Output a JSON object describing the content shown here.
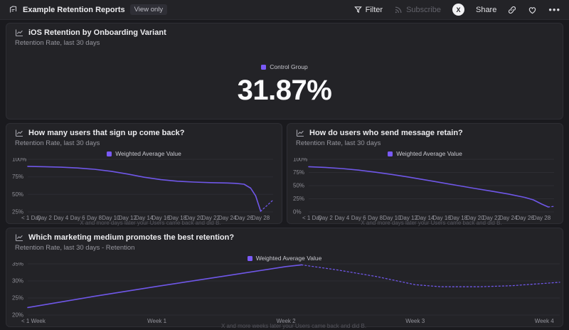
{
  "topbar": {
    "title": "Example Retention Reports",
    "badge": "View only",
    "filter_label": "Filter",
    "subscribe_label": "Subscribe",
    "share_label": "Share",
    "avatar_letter": "X"
  },
  "colors": {
    "accent": "#7a5af8",
    "line": "#6f57e8"
  },
  "cards": [
    {
      "title": "iOS Retention by Onboarding Variant",
      "subtitle": "Retention Rate, last 30 days"
    },
    {
      "title": "How many users that sign up come back?",
      "subtitle": "Retention Rate, last 30 days"
    },
    {
      "title": "How do users who send message retain?",
      "subtitle": "Retention Rate, last 30 days"
    },
    {
      "title": "Which marketing medium promotes the best retention?",
      "subtitle": "Retention Rate, last 30 days - Retention"
    }
  ],
  "chart_data": [
    {
      "type": "number",
      "title": "iOS Retention by Onboarding Variant",
      "legend": "Control Group",
      "value": "31.87%"
    },
    {
      "type": "line",
      "title": "How many users that sign up come back?",
      "legend": "Weighted Average Value",
      "xlabel": "X and more days later your Users came back and did B.",
      "ylabel": "Retention Rate",
      "ylim": [
        25,
        100
      ],
      "yticks": [
        25,
        50,
        75,
        100
      ],
      "xmax": 29.5,
      "xticks": [
        {
          "pos": 0,
          "label": "< 1 Day"
        },
        {
          "pos": 2,
          "label": "Day 2"
        },
        {
          "pos": 4,
          "label": "Day 4"
        },
        {
          "pos": 6,
          "label": "Day 6"
        },
        {
          "pos": 8,
          "label": "Day 8"
        },
        {
          "pos": 10,
          "label": "Day 10"
        },
        {
          "pos": 12,
          "label": "Day 12"
        },
        {
          "pos": 14,
          "label": "Day 14"
        },
        {
          "pos": 16,
          "label": "Day 16"
        },
        {
          "pos": 18,
          "label": "Day 18"
        },
        {
          "pos": 20,
          "label": "Day 20"
        },
        {
          "pos": 22,
          "label": "Day 22"
        },
        {
          "pos": 24,
          "label": "Day 24"
        },
        {
          "pos": 26,
          "label": "Day 26"
        },
        {
          "pos": 28,
          "label": "Day 28"
        }
      ],
      "solid": [
        [
          0,
          90
        ],
        [
          2,
          89.5
        ],
        [
          4,
          88.8
        ],
        [
          6,
          87.6
        ],
        [
          8,
          85.8
        ],
        [
          10,
          83
        ],
        [
          12,
          79
        ],
        [
          14,
          74.5
        ],
        [
          16,
          71
        ],
        [
          18,
          68.8
        ],
        [
          20,
          67.6
        ],
        [
          22,
          66.8
        ],
        [
          24,
          66.2
        ],
        [
          25,
          65.7
        ],
        [
          26,
          64.5
        ],
        [
          26.8,
          59
        ],
        [
          27.4,
          48
        ],
        [
          28,
          26
        ]
      ],
      "dashed": [
        [
          28,
          26
        ],
        [
          29.5,
          42
        ]
      ]
    },
    {
      "type": "line",
      "title": "How do users who send message retain?",
      "legend": "Weighted Average Value",
      "xlabel": "X and more days later your Users came back and did B.",
      "ylabel": "Retention Rate",
      "ylim": [
        0,
        100
      ],
      "yticks": [
        0,
        25,
        50,
        75,
        100
      ],
      "xmax": 29.5,
      "xticks": [
        {
          "pos": 0,
          "label": "< 1 Day"
        },
        {
          "pos": 2,
          "label": "Day 2"
        },
        {
          "pos": 4,
          "label": "Day 4"
        },
        {
          "pos": 6,
          "label": "Day 6"
        },
        {
          "pos": 8,
          "label": "Day 8"
        },
        {
          "pos": 10,
          "label": "Day 10"
        },
        {
          "pos": 12,
          "label": "Day 12"
        },
        {
          "pos": 14,
          "label": "Day 14"
        },
        {
          "pos": 16,
          "label": "Day 16"
        },
        {
          "pos": 18,
          "label": "Day 18"
        },
        {
          "pos": 20,
          "label": "Day 20"
        },
        {
          "pos": 22,
          "label": "Day 22"
        },
        {
          "pos": 24,
          "label": "Day 24"
        },
        {
          "pos": 26,
          "label": "Day 26"
        },
        {
          "pos": 28,
          "label": "Day 28"
        }
      ],
      "solid": [
        [
          0,
          86
        ],
        [
          2,
          84.6
        ],
        [
          4,
          82.4
        ],
        [
          6,
          79.4
        ],
        [
          8,
          75.6
        ],
        [
          10,
          71.2
        ],
        [
          12,
          66.3
        ],
        [
          14,
          61
        ],
        [
          16,
          55.5
        ],
        [
          18,
          50
        ],
        [
          20,
          44.6
        ],
        [
          22,
          39.4
        ],
        [
          24,
          34
        ],
        [
          26,
          27.5
        ],
        [
          27,
          23
        ],
        [
          28,
          15
        ],
        [
          28.8,
          9.5
        ]
      ],
      "dashed": [
        [
          28.8,
          9.5
        ],
        [
          29.5,
          10.5
        ]
      ]
    },
    {
      "type": "line",
      "title": "Which marketing medium promotes the best retention?",
      "legend": "Weighted Average Value",
      "xlabel": "X and more weeks later your Users came back and did B.",
      "ylabel": "Retention Rate",
      "ylim": [
        20,
        35
      ],
      "yticks": [
        20,
        25,
        30,
        35
      ],
      "xmax": 4.12,
      "xticks": [
        {
          "pos": 0,
          "label": "< 1 Week"
        },
        {
          "pos": 1,
          "label": "Week 1"
        },
        {
          "pos": 2,
          "label": "Week 2"
        },
        {
          "pos": 3,
          "label": "Week 3"
        },
        {
          "pos": 4,
          "label": "Week 4"
        }
      ],
      "solid": [
        [
          0,
          22.2
        ],
        [
          0.5,
          25.4
        ],
        [
          1,
          28.4
        ],
        [
          1.5,
          31.3
        ],
        [
          2,
          34.2
        ],
        [
          2.12,
          34.7
        ]
      ],
      "dashed": [
        [
          2.12,
          34.7
        ],
        [
          2.4,
          33.2
        ],
        [
          2.7,
          31.3
        ],
        [
          3,
          28.9
        ],
        [
          3.2,
          28.3
        ],
        [
          3.5,
          28.3
        ],
        [
          3.75,
          28.6
        ],
        [
          4.12,
          29.6
        ]
      ]
    }
  ]
}
